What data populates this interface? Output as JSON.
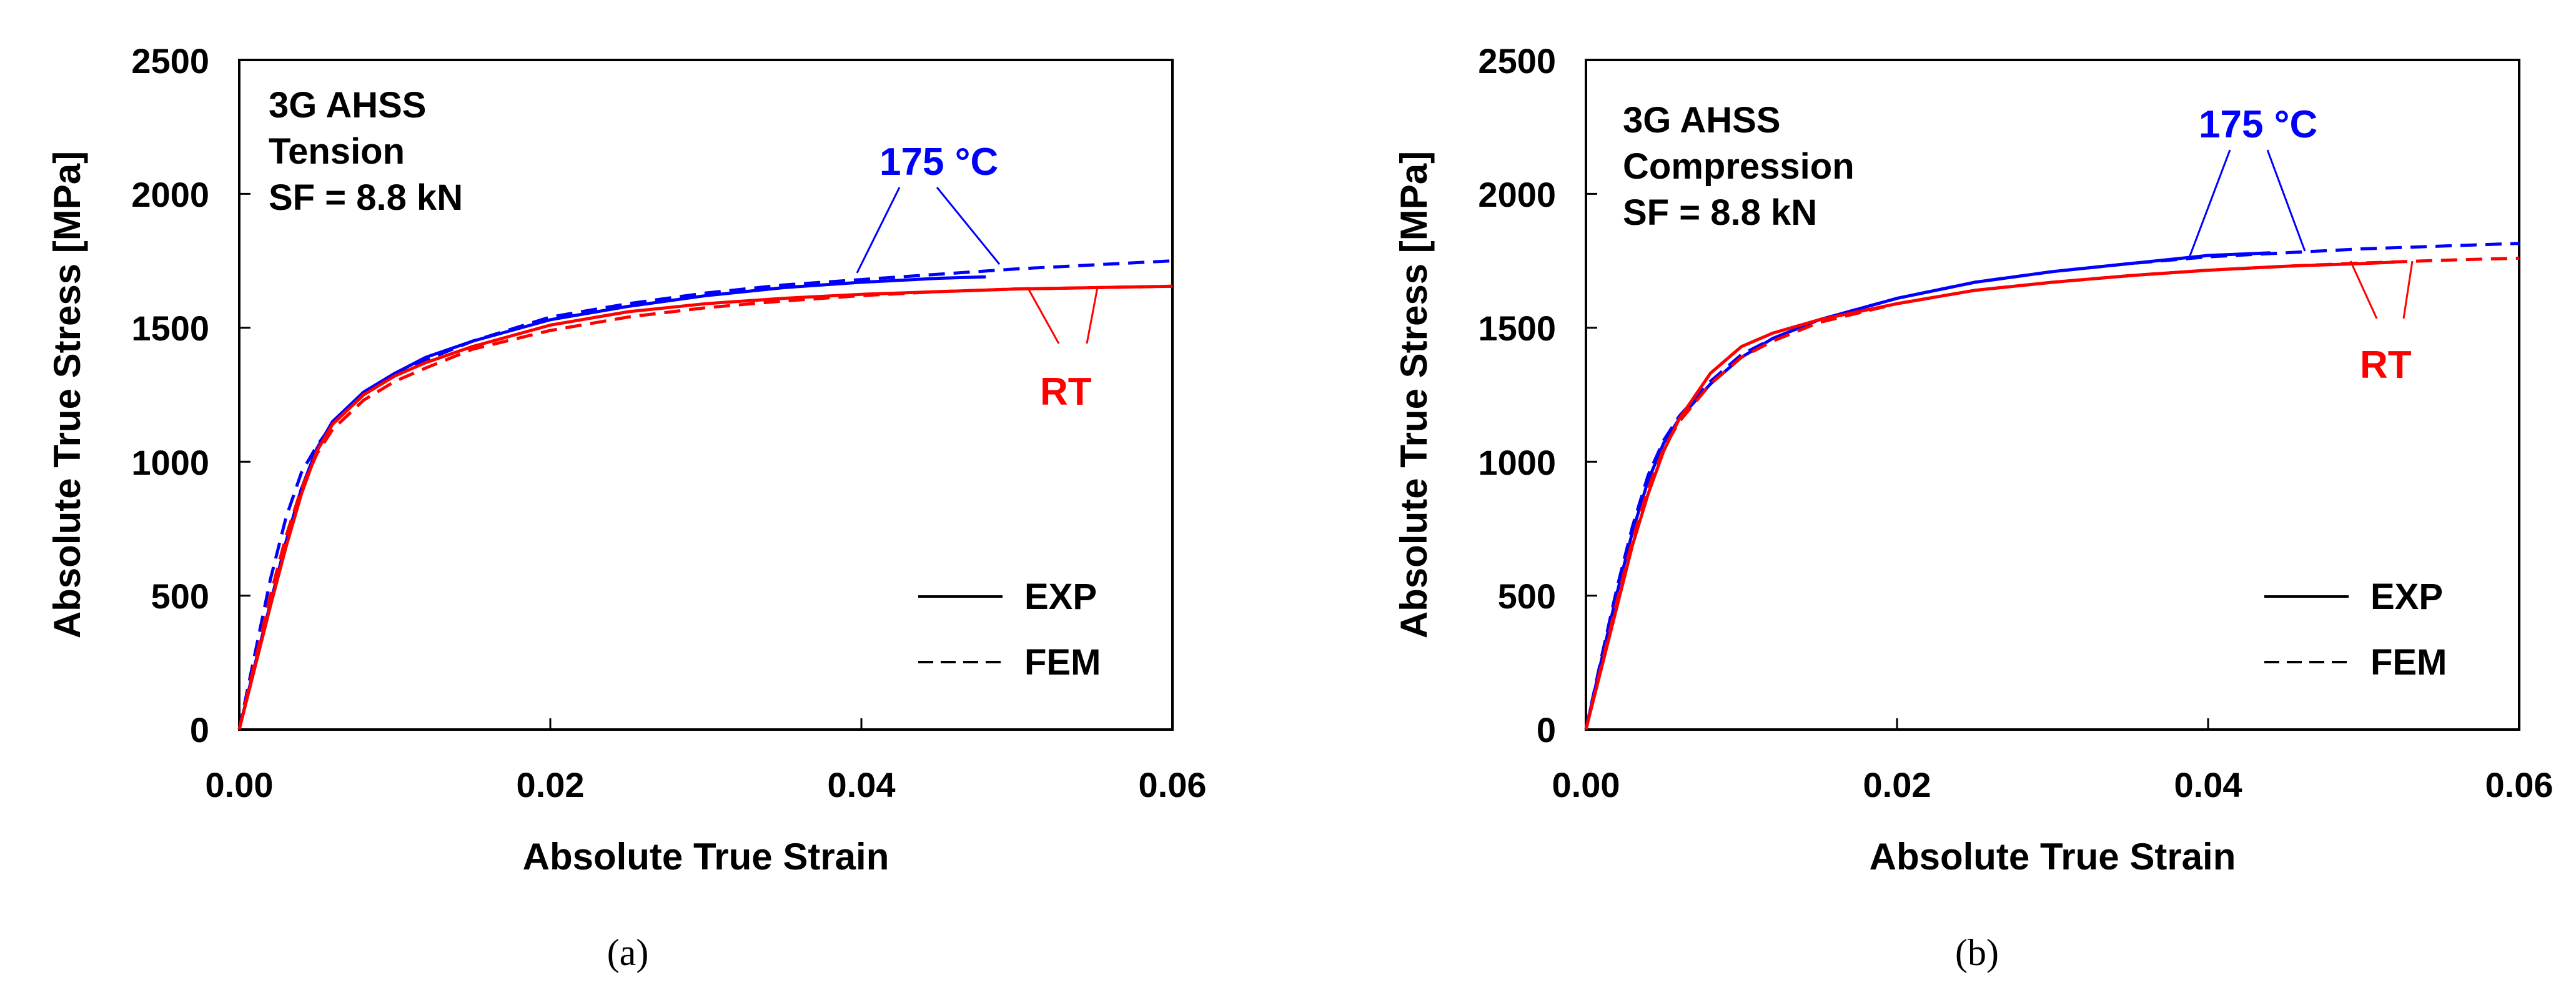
{
  "figure": {
    "legend": {
      "exp": "EXP",
      "fem": "FEM"
    },
    "colors": {
      "t175": "#0000FF",
      "rt": "#FF0000",
      "axis": "#000000"
    },
    "series_names": {
      "t175": "175 °C",
      "rt": "RT"
    }
  },
  "chart_data": [
    {
      "type": "line",
      "panel_caption": "(a)",
      "title": "",
      "xlabel": "Absolute True Strain",
      "ylabel": "Absolute True Stress [MPa]",
      "xlim": [
        0,
        0.06
      ],
      "ylim": [
        0,
        2500
      ],
      "xticks": [
        "0.00",
        "0.02",
        "0.04",
        "0.06"
      ],
      "yticks": [
        "0",
        "500",
        "1000",
        "1500",
        "2000",
        "2500"
      ],
      "annotation": [
        "3G AHSS",
        "Tension",
        "SF = 8.8 kN"
      ],
      "callouts": {
        "t175": "175 °C",
        "rt": "RT"
      },
      "series": [
        {
          "name": "175 °C EXP",
          "key": "t175",
          "style": "solid",
          "x": [
            0,
            0.001,
            0.002,
            0.003,
            0.004,
            0.005,
            0.006,
            0.008,
            0.01,
            0.012,
            0.015,
            0.02,
            0.025,
            0.03,
            0.035,
            0.04,
            0.045,
            0.048
          ],
          "y": [
            0,
            240,
            470,
            700,
            900,
            1050,
            1150,
            1260,
            1330,
            1390,
            1450,
            1530,
            1580,
            1620,
            1650,
            1670,
            1685,
            1690
          ]
        },
        {
          "name": "175 °C FEM",
          "key": "t175",
          "style": "dashed",
          "x": [
            0,
            0.001,
            0.002,
            0.003,
            0.004,
            0.005,
            0.006,
            0.008,
            0.01,
            0.012,
            0.015,
            0.02,
            0.025,
            0.03,
            0.035,
            0.04,
            0.045,
            0.05,
            0.055,
            0.06
          ],
          "y": [
            0,
            280,
            560,
            790,
            960,
            1060,
            1140,
            1250,
            1330,
            1380,
            1450,
            1540,
            1590,
            1630,
            1660,
            1680,
            1700,
            1720,
            1735,
            1750
          ]
        },
        {
          "name": "RT EXP",
          "key": "rt",
          "style": "solid",
          "x": [
            0,
            0.001,
            0.002,
            0.003,
            0.004,
            0.005,
            0.006,
            0.008,
            0.01,
            0.012,
            0.015,
            0.02,
            0.025,
            0.03,
            0.035,
            0.04,
            0.045,
            0.05,
            0.055,
            0.06
          ],
          "y": [
            0,
            230,
            460,
            680,
            880,
            1040,
            1140,
            1250,
            1320,
            1370,
            1430,
            1510,
            1560,
            1590,
            1610,
            1625,
            1635,
            1645,
            1650,
            1655
          ]
        },
        {
          "name": "RT FEM",
          "key": "rt",
          "style": "dashed",
          "x": [
            0,
            0.001,
            0.002,
            0.003,
            0.004,
            0.005,
            0.006,
            0.008,
            0.01,
            0.012,
            0.015,
            0.02,
            0.025,
            0.03,
            0.035,
            0.04,
            0.045,
            0.05,
            0.055,
            0.06
          ],
          "y": [
            0,
            250,
            500,
            720,
            900,
            1030,
            1120,
            1230,
            1300,
            1350,
            1420,
            1490,
            1540,
            1575,
            1600,
            1620,
            1635,
            1645,
            1650,
            1655
          ]
        }
      ]
    },
    {
      "type": "line",
      "panel_caption": "(b)",
      "title": "",
      "xlabel": "Absolute True Strain",
      "ylabel": "Absolute True Stress [MPa]",
      "xlim": [
        0,
        0.06
      ],
      "ylim": [
        0,
        2500
      ],
      "xticks": [
        "0.00",
        "0.02",
        "0.04",
        "0.06"
      ],
      "yticks": [
        "0",
        "500",
        "1000",
        "1500",
        "2000",
        "2500"
      ],
      "annotation": [
        "3G AHSS",
        "Compression",
        "SF = 8.8 kN"
      ],
      "callouts": {
        "t175": "175 °C",
        "rt": "RT"
      },
      "series": [
        {
          "name": "175 °C EXP",
          "key": "t175",
          "style": "solid",
          "x": [
            0,
            0.001,
            0.002,
            0.003,
            0.004,
            0.005,
            0.006,
            0.008,
            0.01,
            0.012,
            0.015,
            0.02,
            0.025,
            0.03,
            0.035,
            0.04,
            0.044
          ],
          "y": [
            0,
            260,
            510,
            740,
            930,
            1070,
            1160,
            1290,
            1390,
            1460,
            1530,
            1610,
            1670,
            1710,
            1740,
            1770,
            1780
          ]
        },
        {
          "name": "175 °C FEM",
          "key": "t175",
          "style": "dashed",
          "x": [
            0,
            0.001,
            0.002,
            0.003,
            0.004,
            0.005,
            0.006,
            0.008,
            0.01,
            0.012,
            0.015,
            0.02,
            0.025,
            0.03,
            0.035,
            0.04,
            0.045,
            0.05,
            0.055,
            0.06
          ],
          "y": [
            0,
            270,
            530,
            760,
            950,
            1080,
            1170,
            1300,
            1400,
            1460,
            1530,
            1610,
            1670,
            1710,
            1740,
            1765,
            1780,
            1795,
            1805,
            1815
          ]
        },
        {
          "name": "RT EXP",
          "key": "rt",
          "style": "solid",
          "x": [
            0,
            0.001,
            0.002,
            0.003,
            0.004,
            0.005,
            0.006,
            0.008,
            0.01,
            0.012,
            0.015,
            0.02,
            0.025,
            0.03,
            0.035,
            0.04,
            0.045,
            0.05,
            0.052
          ],
          "y": [
            0,
            230,
            460,
            690,
            880,
            1040,
            1160,
            1330,
            1430,
            1480,
            1530,
            1590,
            1640,
            1670,
            1695,
            1715,
            1730,
            1740,
            1745
          ]
        },
        {
          "name": "RT FEM",
          "key": "rt",
          "style": "dashed",
          "x": [
            0,
            0.001,
            0.002,
            0.003,
            0.004,
            0.005,
            0.006,
            0.008,
            0.01,
            0.012,
            0.015,
            0.02,
            0.025,
            0.03,
            0.035,
            0.04,
            0.045,
            0.05,
            0.055,
            0.06
          ],
          "y": [
            0,
            240,
            480,
            710,
            900,
            1050,
            1150,
            1290,
            1390,
            1450,
            1520,
            1590,
            1640,
            1670,
            1695,
            1715,
            1730,
            1742,
            1752,
            1760
          ]
        }
      ]
    }
  ]
}
